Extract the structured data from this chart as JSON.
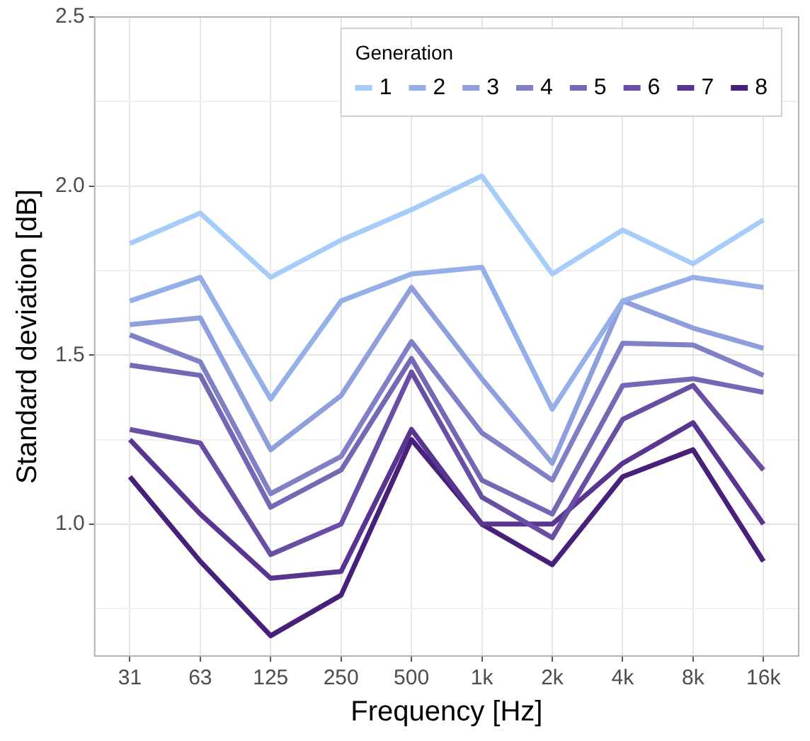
{
  "chart_data": {
    "type": "line",
    "xlabel": "Frequency [Hz]",
    "ylabel": "Standard deviation [dB]",
    "legend_title": "Generation",
    "legend": "top right",
    "grid": true,
    "marker": "none",
    "line_style": "solid",
    "categories": [
      "31",
      "63",
      "125",
      "250",
      "500",
      "1k",
      "2k",
      "4k",
      "8k",
      "16k"
    ],
    "ylim": [
      0.61,
      2.5
    ],
    "yticks": [
      {
        "value": 0.75,
        "label": null
      },
      {
        "value": 1.0,
        "label": "1.0"
      },
      {
        "value": 1.25,
        "label": null
      },
      {
        "value": 1.5,
        "label": "1.5"
      },
      {
        "value": 1.75,
        "label": null
      },
      {
        "value": 2.0,
        "label": "2.0"
      },
      {
        "value": 2.25,
        "label": null
      },
      {
        "value": 2.5,
        "label": "2.5"
      }
    ],
    "series": [
      {
        "name": "1",
        "color": "#a6cdfa",
        "values": [
          1.83,
          1.92,
          1.73,
          1.84,
          1.93,
          2.03,
          1.74,
          1.87,
          1.77,
          1.9
        ]
      },
      {
        "name": "2",
        "color": "#95b0e8",
        "values": [
          1.66,
          1.73,
          1.37,
          1.66,
          1.74,
          1.76,
          1.34,
          1.66,
          1.73,
          1.7
        ]
      },
      {
        "name": "3",
        "color": "#8f9fdc",
        "values": [
          1.59,
          1.61,
          1.22,
          1.38,
          1.7,
          1.43,
          1.18,
          1.66,
          1.58,
          1.52
        ]
      },
      {
        "name": "4",
        "color": "#8080c6",
        "values": [
          1.56,
          1.48,
          1.09,
          1.2,
          1.54,
          1.27,
          1.13,
          1.535,
          1.53,
          1.44
        ]
      },
      {
        "name": "5",
        "color": "#7468b4",
        "values": [
          1.47,
          1.44,
          1.05,
          1.16,
          1.49,
          1.13,
          1.03,
          1.41,
          1.43,
          1.39
        ]
      },
      {
        "name": "6",
        "color": "#6a4ea3",
        "values": [
          1.28,
          1.24,
          0.91,
          1.0,
          1.45,
          1.08,
          0.96,
          1.31,
          1.41,
          1.16
        ]
      },
      {
        "name": "7",
        "color": "#58368f",
        "values": [
          1.25,
          1.03,
          0.84,
          0.86,
          1.28,
          1.0,
          1.0,
          1.18,
          1.3,
          1.0
        ]
      },
      {
        "name": "8",
        "color": "#47207a",
        "values": [
          1.14,
          0.89,
          0.67,
          0.79,
          1.25,
          1.0,
          0.88,
          1.14,
          1.22,
          0.89
        ]
      }
    ]
  }
}
